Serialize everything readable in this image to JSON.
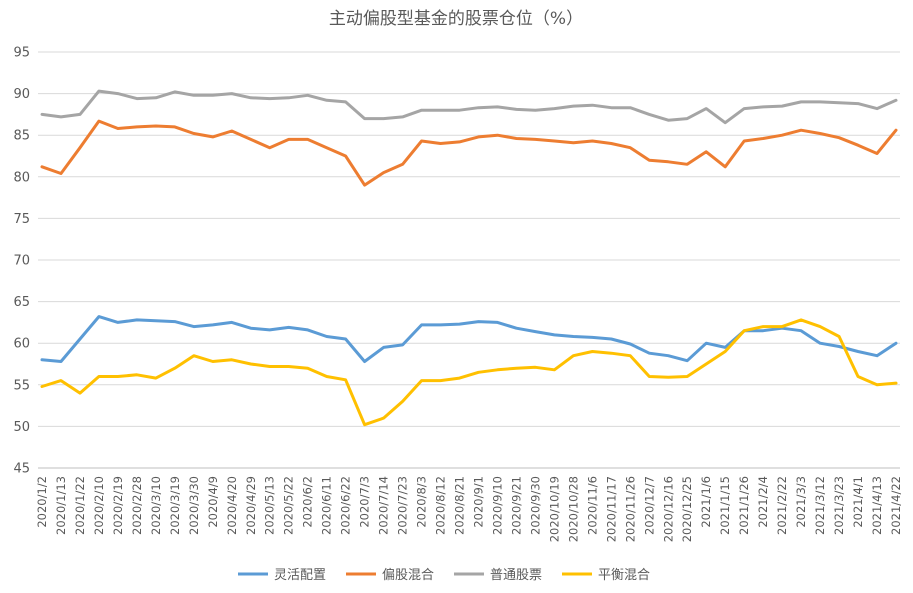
{
  "chart_data": {
    "type": "line",
    "title": "主动偏股型基金的股票仓位（%）",
    "xlabel": "",
    "ylabel": "",
    "ylim": [
      45,
      95
    ],
    "yticks": [
      45,
      50,
      55,
      60,
      65,
      70,
      75,
      80,
      85,
      90,
      95
    ],
    "grid": true,
    "legend_position": "bottom",
    "x": [
      "2020/1/2",
      "2020/1/13",
      "2020/1/22",
      "2020/2/10",
      "2020/2/19",
      "2020/2/28",
      "2020/3/10",
      "2020/3/19",
      "2020/3/30",
      "2020/4/9",
      "2020/4/20",
      "2020/4/29",
      "2020/5/13",
      "2020/5/22",
      "2020/6/2",
      "2020/6/11",
      "2020/6/22",
      "2020/7/3",
      "2020/7/14",
      "2020/7/23",
      "2020/8/3",
      "2020/8/12",
      "2020/8/21",
      "2020/9/1",
      "2020/9/10",
      "2020/9/21",
      "2020/9/30",
      "2020/10/19",
      "2020/10/28",
      "2020/11/6",
      "2020/11/17",
      "2020/11/26",
      "2020/12/7",
      "2020/12/16",
      "2020/12/25",
      "2021/1/6",
      "2021/1/15",
      "2021/1/26",
      "2021/2/4",
      "2021/2/22",
      "2021/3/3",
      "2021/3/12",
      "2021/3/23",
      "2021/4/1",
      "2021/4/13",
      "2021/4/22"
    ],
    "series": [
      {
        "name": "灵活配置",
        "color": "#5b9bd5",
        "values": [
          58.0,
          57.8,
          60.5,
          63.2,
          62.5,
          62.8,
          62.7,
          62.6,
          62.0,
          62.2,
          62.5,
          61.8,
          61.6,
          61.9,
          61.6,
          60.8,
          60.5,
          57.8,
          59.5,
          59.8,
          62.2,
          62.2,
          62.3,
          62.6,
          62.5,
          61.8,
          61.4,
          61.0,
          60.8,
          60.7,
          60.5,
          59.9,
          58.8,
          58.5,
          57.9,
          60.0,
          59.5,
          61.5,
          61.5,
          61.8,
          61.5,
          60.0,
          59.6,
          59.0,
          58.5,
          60.0
        ]
      },
      {
        "name": "偏股混合",
        "color": "#ed7d31",
        "values": [
          81.2,
          80.4,
          83.5,
          86.7,
          85.8,
          86.0,
          86.1,
          86.0,
          85.2,
          84.8,
          85.5,
          84.5,
          83.5,
          84.5,
          84.5,
          83.5,
          82.5,
          79.0,
          80.5,
          81.5,
          84.3,
          84.0,
          84.2,
          84.8,
          85.0,
          84.6,
          84.5,
          84.3,
          84.1,
          84.3,
          84.0,
          83.5,
          82.0,
          81.8,
          81.5,
          83.0,
          81.2,
          84.3,
          84.6,
          85.0,
          85.6,
          85.2,
          84.7,
          83.8,
          82.8,
          85.6
        ]
      },
      {
        "name": "普通股票",
        "color": "#a5a5a5",
        "values": [
          87.5,
          87.2,
          87.5,
          90.3,
          90.0,
          89.4,
          89.5,
          90.2,
          89.8,
          89.8,
          90.0,
          89.5,
          89.4,
          89.5,
          89.8,
          89.2,
          89.0,
          87.0,
          87.0,
          87.2,
          88.0,
          88.0,
          88.0,
          88.3,
          88.4,
          88.1,
          88.0,
          88.2,
          88.5,
          88.6,
          88.3,
          88.3,
          87.5,
          86.8,
          87.0,
          88.2,
          86.5,
          88.2,
          88.4,
          88.5,
          89.0,
          89.0,
          88.9,
          88.8,
          88.2,
          89.2
        ]
      },
      {
        "name": "平衡混合",
        "color": "#ffc000",
        "values": [
          54.8,
          55.5,
          54.0,
          56.0,
          56.0,
          56.2,
          55.8,
          57.0,
          58.5,
          57.8,
          58.0,
          57.5,
          57.2,
          57.2,
          57.0,
          56.0,
          55.6,
          50.2,
          51.0,
          53.0,
          55.5,
          55.5,
          55.8,
          56.5,
          56.8,
          57.0,
          57.1,
          56.8,
          58.5,
          59.0,
          58.8,
          58.5,
          56.0,
          55.9,
          56.0,
          57.5,
          59.0,
          61.5,
          62.0,
          62.0,
          62.8,
          62.0,
          60.8,
          56.0,
          55.0,
          55.2
        ]
      }
    ]
  }
}
